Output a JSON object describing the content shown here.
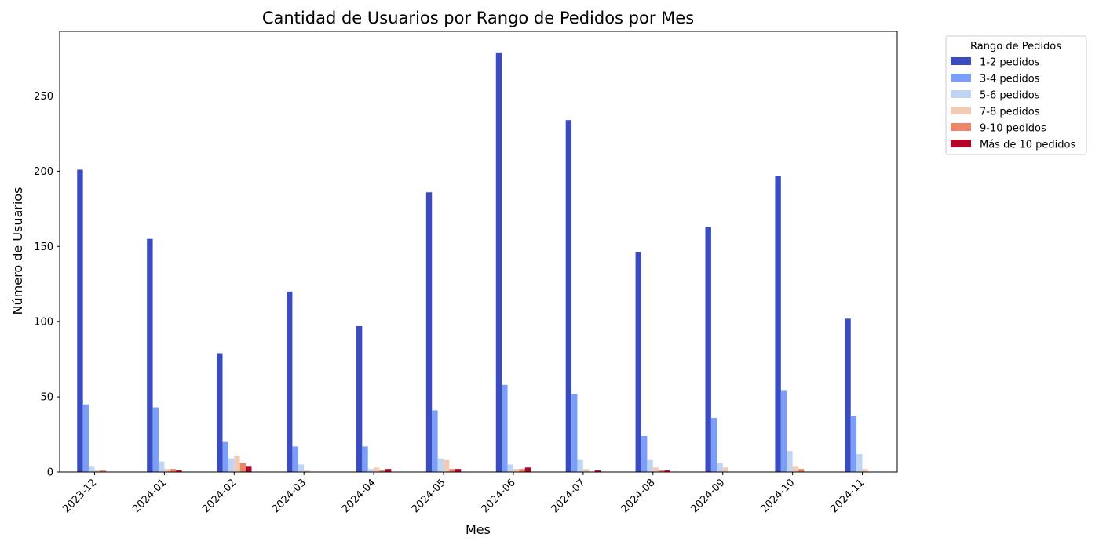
{
  "chart_data": {
    "type": "bar",
    "title": "Cantidad de Usuarios por Rango de Pedidos por Mes",
    "xlabel": "Mes",
    "ylabel": "Número de Usuarios",
    "ylim": [
      0,
      293
    ],
    "yticks": [
      0,
      50,
      100,
      150,
      200,
      250
    ],
    "grid": false,
    "legend_title": "Rango de Pedidos",
    "legend_position": "outside-top-right",
    "categories": [
      "2023-12",
      "2024-01",
      "2024-02",
      "2024-03",
      "2024-04",
      "2024-05",
      "2024-06",
      "2024-07",
      "2024-08",
      "2024-09",
      "2024-10",
      "2024-11"
    ],
    "series": [
      {
        "name": "1-2 pedidos",
        "color": "#3b4cc0",
        "values": [
          201,
          155,
          79,
          120,
          97,
          186,
          279,
          234,
          146,
          163,
          197,
          102
        ]
      },
      {
        "name": "3-4 pedidos",
        "color": "#7b9ff9",
        "values": [
          45,
          43,
          20,
          17,
          17,
          41,
          58,
          52,
          24,
          36,
          54,
          37
        ]
      },
      {
        "name": "5-6 pedidos",
        "color": "#c0d4f5",
        "values": [
          4,
          7,
          9,
          5,
          2,
          9,
          5,
          8,
          8,
          6,
          14,
          12
        ]
      },
      {
        "name": "7-8 pedidos",
        "color": "#f2cbb7",
        "values": [
          1,
          2,
          11,
          1,
          3,
          8,
          2,
          2,
          3,
          3,
          4,
          2
        ]
      },
      {
        "name": "9-10 pedidos",
        "color": "#ee8468",
        "values": [
          1,
          2,
          6,
          0,
          1,
          2,
          2,
          0,
          1,
          0,
          2,
          0
        ]
      },
      {
        "name": "Más de 10 pedidos",
        "color": "#b40426",
        "values": [
          0,
          1,
          4,
          0,
          2,
          2,
          3,
          1,
          1,
          0,
          0,
          0
        ]
      }
    ]
  }
}
